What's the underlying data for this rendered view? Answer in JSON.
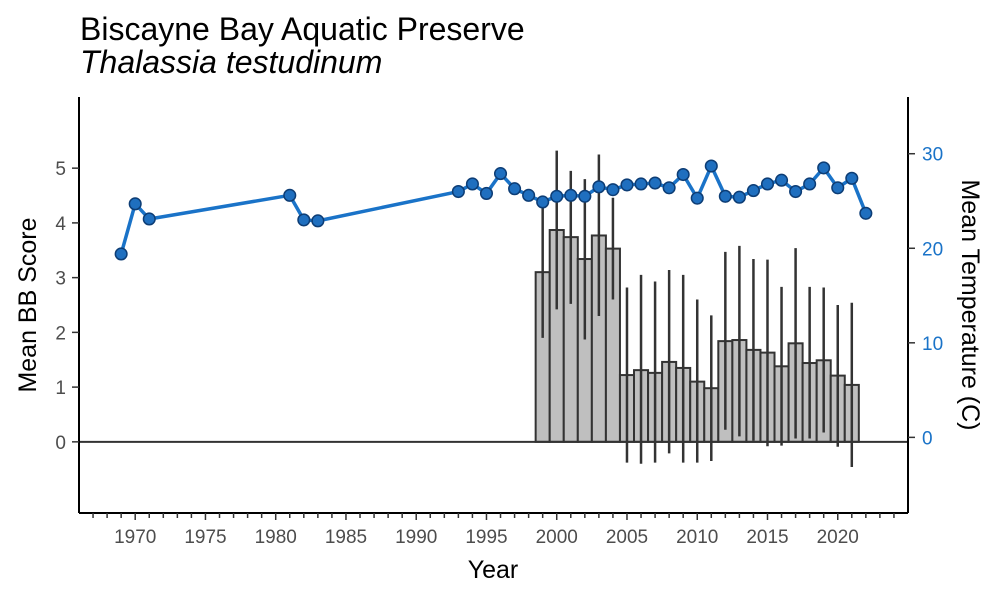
{
  "chart_data": {
    "type": "bar+line",
    "title": "Biscayne Bay Aquatic Preserve",
    "subtitle": "Thalassia testudinum",
    "xlabel": "Year",
    "ylabel": "Mean BB Score",
    "y2label": "Mean Temperature (C)",
    "xlim": [
      1966,
      2025
    ],
    "ylim": [
      -1.3,
      6.3
    ],
    "y2lim": [
      -8.0,
      36.0
    ],
    "x_ticks": [
      1970,
      1975,
      1980,
      1985,
      1990,
      1995,
      2000,
      2005,
      2010,
      2015,
      2020
    ],
    "y_ticks": [
      0,
      1,
      2,
      3,
      4,
      5
    ],
    "y2_ticks": [
      0,
      10,
      20,
      30
    ],
    "grid": false,
    "legend": "none",
    "colors": {
      "bar_fill": "#bfbfbf",
      "bar_stroke": "#333333",
      "line": "#1a73c8",
      "point_fill": "#1f6fbf",
      "point_stroke": "#0d3d75",
      "zero_line": "#333333",
      "right_axis": "#1a73c8"
    },
    "bars": {
      "name": "Mean BB Score",
      "x": [
        1999,
        2000,
        2001,
        2002,
        2003,
        2004,
        2005,
        2006,
        2007,
        2008,
        2009,
        2010,
        2011,
        2012,
        2013,
        2014,
        2015,
        2016,
        2017,
        2018,
        2019,
        2020,
        2021
      ],
      "values": [
        3.1,
        3.87,
        3.74,
        3.34,
        3.77,
        3.53,
        1.22,
        1.31,
        1.26,
        1.46,
        1.35,
        1.1,
        0.98,
        1.84,
        1.86,
        1.68,
        1.63,
        1.38,
        1.8,
        1.44,
        1.49,
        1.21,
        1.04
      ],
      "error_low": [
        1.9,
        2.42,
        2.52,
        1.87,
        2.3,
        2.6,
        -0.38,
        -0.4,
        -0.38,
        -0.21,
        -0.38,
        -0.38,
        -0.35,
        0.22,
        0.1,
        0.02,
        -0.08,
        -0.07,
        0.06,
        0.06,
        0.17,
        -0.09,
        -0.46
      ],
      "error_high": [
        4.3,
        5.32,
        4.95,
        4.8,
        5.25,
        4.46,
        2.82,
        3.05,
        2.93,
        3.14,
        3.05,
        2.6,
        2.31,
        3.47,
        3.58,
        3.34,
        3.33,
        2.83,
        3.54,
        2.83,
        2.82,
        2.5,
        2.54
      ]
    },
    "line": {
      "name": "Mean Temperature (C)",
      "x": [
        1969,
        1970,
        1971,
        1981,
        1982,
        1983,
        1993,
        1994,
        1995,
        1996,
        1997,
        1998,
        1999,
        2000,
        2001,
        2002,
        2003,
        2004,
        2005,
        2006,
        2007,
        2008,
        2009,
        2010,
        2011,
        2012,
        2013,
        2014,
        2015,
        2016,
        2017,
        2018,
        2019,
        2020,
        2021,
        2022
      ],
      "values": [
        19.4,
        24.7,
        23.1,
        25.6,
        23.0,
        22.9,
        26.0,
        26.8,
        25.8,
        27.9,
        26.3,
        25.6,
        24.9,
        25.5,
        25.6,
        25.5,
        26.5,
        26.2,
        26.7,
        26.8,
        26.9,
        26.4,
        27.8,
        25.3,
        28.7,
        25.5,
        25.4,
        26.1,
        26.8,
        27.2,
        26.0,
        26.8,
        28.5,
        26.4,
        27.4,
        23.7
      ]
    }
  }
}
